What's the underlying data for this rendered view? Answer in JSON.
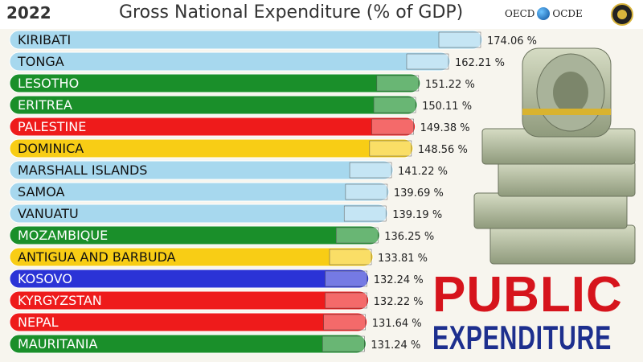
{
  "header": {
    "year": "2022",
    "title": "Gross National Expenditure (% of GDP)",
    "logo_left": "OECD",
    "logo_right": "OCDE"
  },
  "banner": {
    "line1": "PUBLIC",
    "line2": "EXPENDITURE",
    "line1_color": "#d6141c",
    "line2_color": "#1d2f8e"
  },
  "chart_data": {
    "type": "bar",
    "orientation": "horizontal",
    "title": "Gross National Expenditure (% of GDP)",
    "unit": "%",
    "categories": [
      "KIRIBATI",
      "TONGA",
      "LESOTHO",
      "ERITREA",
      "PALESTINE",
      "DOMINICA",
      "MARSHALL ISLANDS",
      "SAMOA",
      "VANUATU",
      "MOZAMBIQUE",
      "ANTIGUA AND BARBUDA",
      "KOSOVO",
      "KYRGYZSTAN",
      "NEPAL",
      "MAURITANIA"
    ],
    "values": [
      174.06,
      162.21,
      151.22,
      150.11,
      149.38,
      148.56,
      141.22,
      139.69,
      139.19,
      136.25,
      133.81,
      132.24,
      132.22,
      131.64,
      131.24
    ],
    "value_labels": [
      "174.06 %",
      "162.21 %",
      "151.22 %",
      "150.11 %",
      "149.38 %",
      "148.56 %",
      "141.22 %",
      "139.69 %",
      "139.19 %",
      "136.25 %",
      "133.81 %",
      "132.24 %",
      "132.22 %",
      "131.64 %",
      "131.24 %"
    ],
    "bar_colors": [
      "#a7d8ee",
      "#a7d8ee",
      "#1a8f2a",
      "#1a8f2a",
      "#ee1b1b",
      "#f8cd15",
      "#a7d8ee",
      "#a7d8ee",
      "#a7d8ee",
      "#1a8f2a",
      "#f8cd15",
      "#2b33d6",
      "#ee1b1b",
      "#ee1b1b",
      "#1a8f2a"
    ],
    "label_colors": [
      "#111111",
      "#111111",
      "#ffffff",
      "#ffffff",
      "#ffffff",
      "#111111",
      "#111111",
      "#111111",
      "#111111",
      "#ffffff",
      "#111111",
      "#ffffff",
      "#ffffff",
      "#ffffff",
      "#ffffff"
    ],
    "xlim": [
      0,
      174.06
    ],
    "grid": false,
    "legend": "none"
  }
}
